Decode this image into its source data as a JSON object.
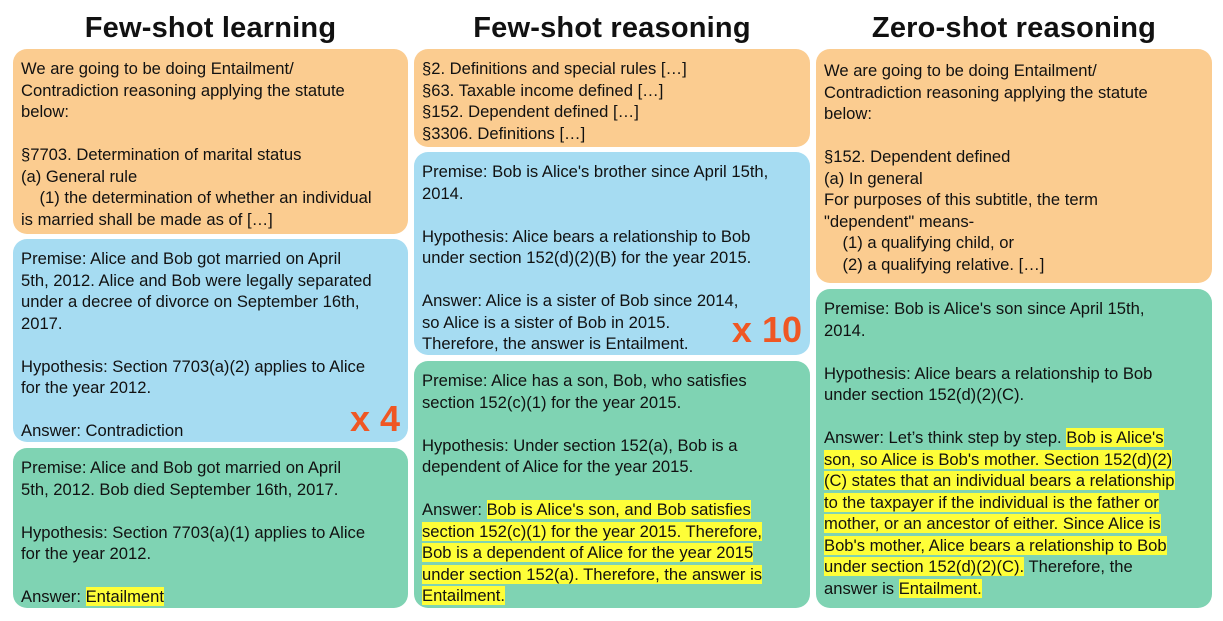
{
  "columns": [
    {
      "title": "Few-shot learning",
      "boxes": [
        {
          "lines": [
            "We are going to be doing Entailment/",
            "Contradiction reasoning applying the statute",
            "below:",
            "",
            "§7703. Determination of marital status",
            "(a) General rule",
            "    (1) the determination of whether an individual",
            "is married shall be made as of […]"
          ]
        },
        {
          "lines": [
            "Premise: Alice and Bob got married on April",
            "5th, 2012. Alice and Bob were legally separated",
            "under a decree of divorce on September 16th,",
            "2017.",
            "",
            "Hypothesis: Section 7703(a)(2) applies to Alice",
            "for the year 2012.",
            "",
            "Answer: Contradiction"
          ],
          "multiplier": "x 4"
        },
        {
          "lines": [
            "Premise: Alice and Bob got married on April",
            "5th, 2012. Bob died September 16th, 2017.",
            "",
            "Hypothesis: Section 7703(a)(1) applies to Alice",
            "for the year 2012.",
            ""
          ],
          "answer_prefix": "Answer: ",
          "answer_highlight": "Entailment"
        }
      ]
    },
    {
      "title": "Few-shot reasoning",
      "boxes": [
        {
          "lines": [
            "§2. Definitions and special rules […]",
            "§63. Taxable income defined […]",
            "§152. Dependent defined […]",
            "§3306. Definitions […]"
          ]
        },
        {
          "lines": [
            "Premise: Bob is Alice's brother since April 15th,",
            "2014.",
            "",
            "Hypothesis: Alice bears a relationship to Bob",
            "under section 152(d)(2)(B) for the year 2015.",
            "",
            "Answer: Alice is a sister of Bob since 2014,",
            "so Alice is a sister of Bob in 2015.",
            "Therefore, the answer is Entailment."
          ],
          "multiplier": "x 10"
        },
        {
          "lines": [
            "Premise: Alice has a son, Bob, who satisfies",
            "section 152(c)(1) for the year 2015.",
            "",
            "Hypothesis: Under section 152(a), Bob is a",
            "dependent of Alice for the year 2015.",
            ""
          ],
          "answer_prefix": "Answer: ",
          "highlight_lines": [
            "Bob is Alice's son, and Bob satisfies",
            "section 152(c)(1) for the year 2015. Therefore,",
            "Bob is a dependent of Alice for the year 2015",
            "under section 152(a). Therefore, the answer is",
            "Entailment."
          ]
        }
      ]
    },
    {
      "title": "Zero-shot reasoning",
      "boxes": [
        {
          "lines": [
            "We are going to be doing Entailment/",
            "Contradiction reasoning applying the statute",
            "below:",
            "",
            "§152. Dependent defined",
            "(a) In general",
            "For purposes of this subtitle, the term",
            "\"dependent\" means-",
            "    (1) a qualifying child, or",
            "    (2) a qualifying relative. […]"
          ]
        },
        {
          "lines": [
            "Premise: Bob is Alice's son since April 15th,",
            "2014.",
            "",
            "Hypothesis: Alice bears a relationship to Bob",
            "under section 152(d)(2)(C).",
            ""
          ],
          "answer_prefix": "Answer: Let’s think step by step. ",
          "highlight_lines": [
            "Bob is Alice's",
            "son, so Alice is Bob's mother. Section 152(d)(2)",
            "(C) states that an individual bears a relationship",
            "to the taxpayer if the individual is the father or",
            "mother, or an ancestor of either. Since Alice is",
            "Bob's mother, Alice bears a relationship to Bob",
            "under section 152(d)(2)(C)."
          ],
          "tail_text": " Therefore, the",
          "final_prefix": "answer is ",
          "final_highlight": "Entailment."
        }
      ]
    }
  ],
  "colors": {
    "orange": "#fbcc90",
    "blue": "#a6dcf2",
    "green": "#7fd3b3",
    "highlight": "#fefe38",
    "multiplier": "#ef5724"
  }
}
